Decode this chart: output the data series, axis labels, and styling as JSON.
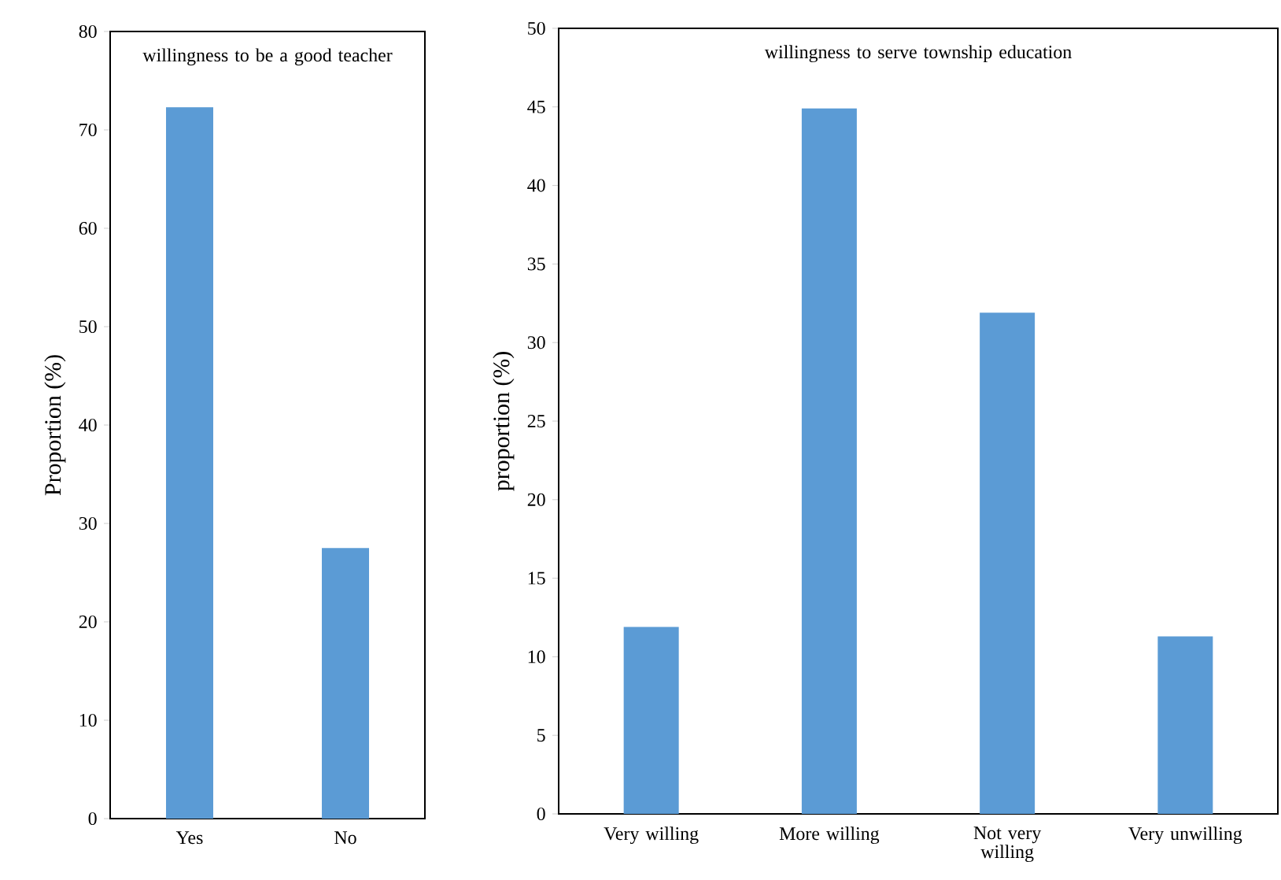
{
  "chart_data": [
    {
      "type": "bar",
      "title": "willingness to be a good teacher",
      "ylabel": "Proportion (%)",
      "categories": [
        "Yes",
        "No"
      ],
      "values": [
        72.3,
        27.5
      ],
      "color": "#5b9bd5",
      "ylim": [
        0,
        80
      ],
      "yticks": [
        0,
        10,
        20,
        30,
        40,
        50,
        60,
        70,
        80
      ],
      "grid": false
    },
    {
      "type": "bar",
      "title": "willingness to serve township education",
      "ylabel": "proportion (%)",
      "categories": [
        "Very willing",
        "More willing",
        "Not very willing",
        "Very unwilling"
      ],
      "values": [
        11.9,
        44.9,
        31.9,
        11.3
      ],
      "color": "#5b9bd5",
      "ylim": [
        0,
        50
      ],
      "yticks": [
        0,
        5,
        10,
        15,
        20,
        25,
        30,
        35,
        40,
        45,
        50
      ],
      "grid": false
    }
  ]
}
